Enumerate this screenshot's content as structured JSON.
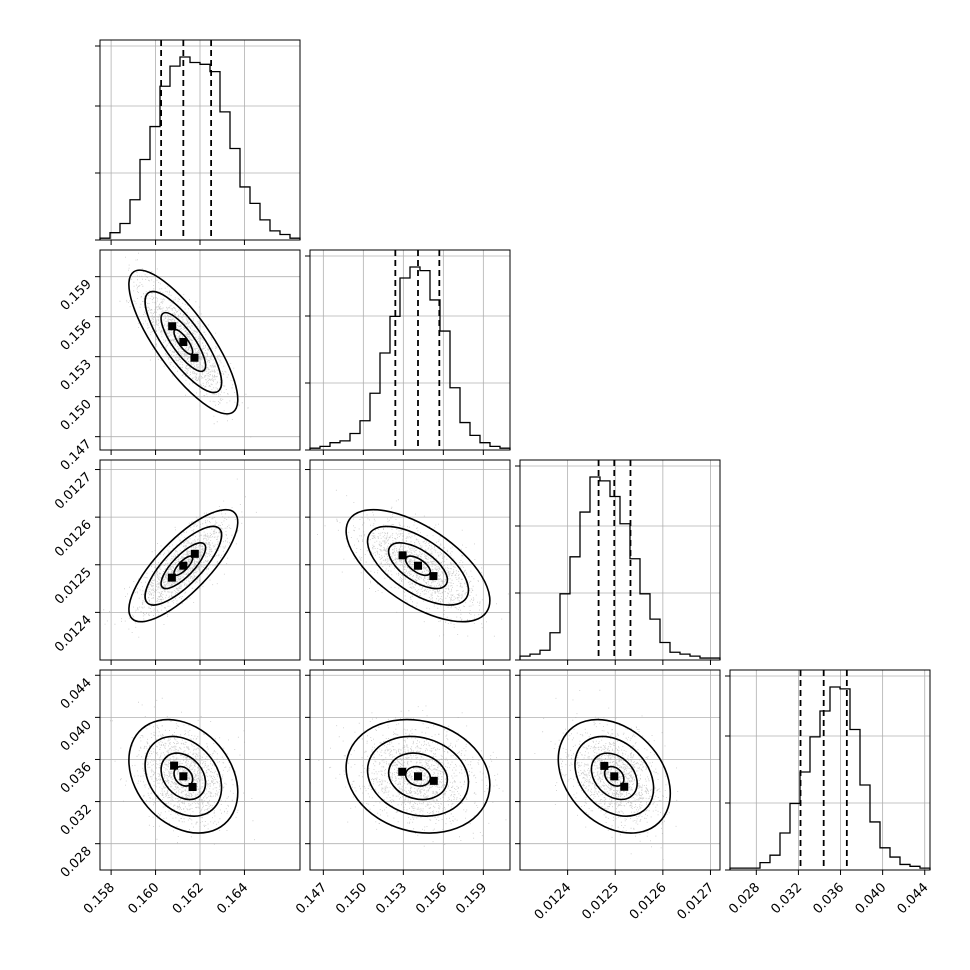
{
  "chart_data": {
    "type": "corner",
    "grid": true,
    "parameters": [
      {
        "range": [
          0.1575,
          0.1665
        ],
        "median": 0.16125,
        "quantiles": [
          0.16025,
          0.16125,
          0.1625
        ],
        "ticks": [
          0.158,
          0.16,
          0.162,
          0.164
        ],
        "tick_labels": [
          "0.158",
          "0.160",
          "0.162",
          "0.164"
        ],
        "hist": [
          0.01,
          0.04,
          0.09,
          0.22,
          0.44,
          0.62,
          0.84,
          0.95,
          1.0,
          0.97,
          0.96,
          0.92,
          0.7,
          0.5,
          0.29,
          0.2,
          0.11,
          0.05,
          0.03,
          0.01
        ]
      },
      {
        "range": [
          0.146,
          0.161
        ],
        "median": 0.1541,
        "quantiles": [
          0.1524,
          0.1541,
          0.1557
        ],
        "ticks": [
          0.147,
          0.15,
          0.153,
          0.156,
          0.159
        ],
        "tick_labels": [
          "0.147",
          "0.150",
          "0.153",
          "0.156",
          "0.159"
        ],
        "hist": [
          0.01,
          0.02,
          0.04,
          0.05,
          0.09,
          0.16,
          0.31,
          0.53,
          0.73,
          0.94,
          1.0,
          0.98,
          0.82,
          0.65,
          0.34,
          0.15,
          0.08,
          0.04,
          0.02,
          0.01
        ]
      },
      {
        "range": [
          0.0123,
          0.01272
        ],
        "median": 0.012498,
        "quantiles": [
          0.012465,
          0.012498,
          0.012532
        ],
        "ticks": [
          0.0124,
          0.0125,
          0.0126,
          0.0127
        ],
        "tick_labels": [
          "0.0124",
          "0.0125",
          "0.0126",
          "0.0127"
        ],
        "hist": [
          0.02,
          0.03,
          0.05,
          0.14,
          0.34,
          0.53,
          0.76,
          0.94,
          0.92,
          0.84,
          0.7,
          0.52,
          0.34,
          0.21,
          0.09,
          0.04,
          0.03,
          0.02,
          0.01,
          0.01
        ]
      },
      {
        "range": [
          0.0255,
          0.0445
        ],
        "median": 0.0344,
        "quantiles": [
          0.0322,
          0.0344,
          0.0366
        ],
        "ticks": [
          0.028,
          0.032,
          0.036,
          0.04,
          0.044
        ],
        "tick_labels": [
          "0.028",
          "0.032",
          "0.036",
          "0.040",
          "0.044"
        ],
        "hist": [
          0.01,
          0.01,
          0.01,
          0.04,
          0.08,
          0.2,
          0.36,
          0.53,
          0.72,
          0.86,
          0.99,
          0.98,
          0.76,
          0.46,
          0.26,
          0.12,
          0.07,
          0.03,
          0.02,
          0.01
        ]
      }
    ],
    "pairs": [
      {
        "x": 0,
        "y": 1,
        "mean": [
          0.16125,
          0.1541
        ],
        "sigma": [
          0.001,
          0.0022
        ],
        "rho": -0.8
      },
      {
        "x": 0,
        "y": 2,
        "mean": [
          0.16125,
          0.012498
        ],
        "sigma": [
          0.001,
          4.8e-05
        ],
        "rho": 0.78
      },
      {
        "x": 1,
        "y": 2,
        "mean": [
          0.1541,
          0.012498
        ],
        "sigma": [
          0.0022,
          4.8e-05
        ],
        "rho": -0.62
      },
      {
        "x": 0,
        "y": 3,
        "mean": [
          0.16125,
          0.0344
        ],
        "sigma": [
          0.001,
          0.0022
        ],
        "rho": -0.28
      },
      {
        "x": 1,
        "y": 3,
        "mean": [
          0.1541,
          0.0344
        ],
        "sigma": [
          0.0022,
          0.0022
        ],
        "rho": -0.15
      },
      {
        "x": 2,
        "y": 3,
        "mean": [
          0.012498,
          0.0344
        ],
        "sigma": [
          4.8e-05,
          0.0022
        ],
        "rho": -0.3
      }
    ],
    "colors": {
      "hist": "#000000",
      "scatter": "#9e9e9e",
      "grid": "#b0b0b0",
      "density": "#000000"
    }
  }
}
